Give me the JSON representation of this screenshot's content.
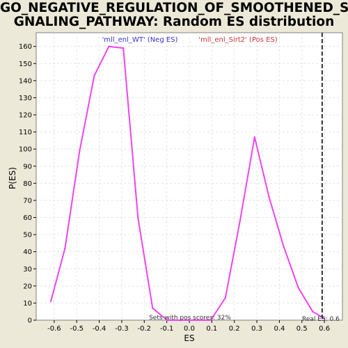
{
  "title": {
    "line1": "GO_NEGATIVE_REGULATION_OF_SMOOTHENED_SI",
    "line2": "GNALING_PATHWAY: Random ES distribution"
  },
  "chart_data": {
    "type": "line",
    "xlabel": "ES",
    "ylabel": "P(ES)",
    "xlim": [
      -0.68,
      0.68
    ],
    "ylim": [
      0,
      168
    ],
    "xticks": [
      -0.6,
      -0.5,
      -0.4,
      -0.3,
      -0.2,
      -0.1,
      0.0,
      0.1,
      0.2,
      0.3,
      0.4,
      0.5,
      0.6
    ],
    "xtick_labels": [
      "-0.6",
      "-0.5",
      "-0.4",
      "-0.3",
      "-0.2",
      "-0.1",
      "0.0",
      "0.1",
      "0.2",
      "0.3",
      "0.4",
      "0.5",
      "0.6"
    ],
    "yticks": [
      0,
      10,
      20,
      30,
      40,
      50,
      60,
      70,
      80,
      90,
      100,
      110,
      120,
      130,
      140,
      150,
      160
    ],
    "grid": true,
    "legend": {
      "neg": "'mll_enl_WT' (Neg ES)",
      "pos": "'mll_enl_Sirt2' (Pos ES)"
    },
    "series": [
      {
        "color": "#ee44ee",
        "x": [
          -0.615,
          -0.552,
          -0.487,
          -0.422,
          -0.357,
          -0.293,
          -0.228,
          -0.163,
          -0.099,
          -0.034,
          0.031,
          0.095,
          0.16,
          0.225,
          0.29,
          0.354,
          0.419,
          0.484,
          0.548,
          0.6
        ],
        "y": [
          11,
          42,
          99,
          143,
          160,
          159,
          60,
          7,
          0,
          0,
          0,
          0,
          13,
          58,
          107,
          72,
          43,
          19,
          5,
          1
        ]
      }
    ],
    "real_es": 0.59,
    "annotations": {
      "pos_scores": "Sets with pos scores: 32%",
      "real_es": "Real ES: 0.6"
    }
  }
}
